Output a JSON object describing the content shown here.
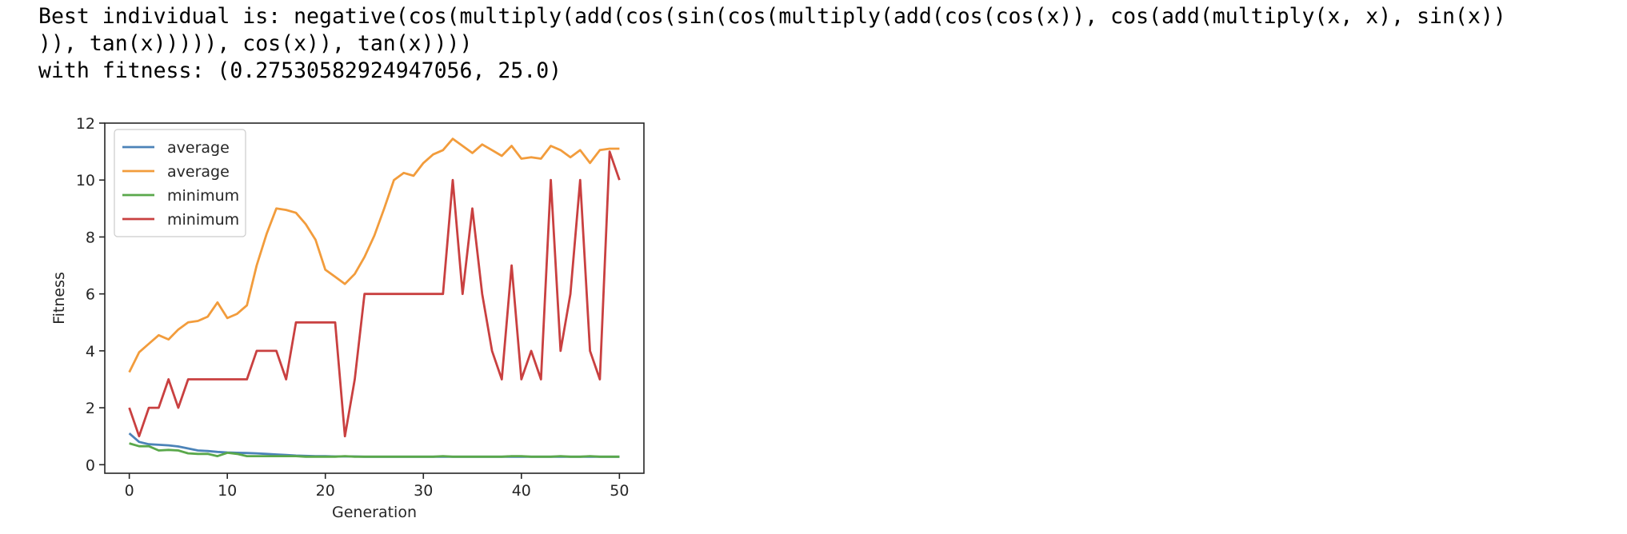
{
  "output": {
    "line1": "Best individual is: negative(cos(multiply(add(cos(sin(cos(multiply(add(cos(cos(x)), cos(add(multiply(x, x), sin(x))",
    "line2": ")), tan(x))))), cos(x)), tan(x))))",
    "line3": "with fitness: (0.27530582924947056, 25.0)"
  },
  "chart_data": {
    "type": "line",
    "title": "",
    "xlabel": "Generation",
    "ylabel": "Fitness",
    "xlim": [
      -2.5,
      52.5
    ],
    "ylim": [
      -0.3,
      12.0
    ],
    "xticks": [
      0,
      10,
      20,
      30,
      40,
      50
    ],
    "yticks": [
      0,
      2,
      4,
      6,
      8,
      10,
      12
    ],
    "grid": false,
    "legend": "upper-left",
    "x": [
      0,
      1,
      2,
      3,
      4,
      5,
      6,
      7,
      8,
      9,
      10,
      11,
      12,
      13,
      14,
      15,
      16,
      17,
      18,
      19,
      20,
      21,
      22,
      23,
      24,
      25,
      26,
      27,
      28,
      29,
      30,
      31,
      32,
      33,
      34,
      35,
      36,
      37,
      38,
      39,
      40,
      41,
      42,
      43,
      44,
      45,
      46,
      47,
      48,
      49,
      50
    ],
    "series": [
      {
        "name": "average",
        "color": "#4c83b8",
        "values": [
          1.1,
          0.8,
          0.72,
          0.7,
          0.68,
          0.64,
          0.57,
          0.5,
          0.48,
          0.45,
          0.43,
          0.42,
          0.41,
          0.4,
          0.38,
          0.36,
          0.34,
          0.32,
          0.31,
          0.3,
          0.3,
          0.29,
          0.29,
          0.29,
          0.28,
          0.28,
          0.28,
          0.28,
          0.28,
          0.28,
          0.28,
          0.28,
          0.28,
          0.28,
          0.28,
          0.28,
          0.28,
          0.28,
          0.28,
          0.28,
          0.28,
          0.28,
          0.28,
          0.28,
          0.28,
          0.28,
          0.28,
          0.28,
          0.28,
          0.28,
          0.28
        ]
      },
      {
        "name": "average",
        "color": "#f29c3c",
        "values": [
          3.25,
          3.95,
          4.25,
          4.55,
          4.4,
          4.75,
          5.0,
          5.05,
          5.2,
          5.7,
          5.15,
          5.3,
          5.6,
          7.0,
          8.1,
          9.0,
          8.95,
          8.85,
          8.45,
          7.9,
          6.85,
          6.6,
          6.35,
          6.7,
          7.3,
          8.05,
          9.0,
          10.0,
          10.25,
          10.15,
          10.6,
          10.9,
          11.05,
          11.45,
          11.2,
          10.95,
          11.25,
          11.05,
          10.85,
          11.2,
          10.75,
          10.8,
          10.75,
          11.2,
          11.05,
          10.8,
          11.05,
          10.6,
          11.05,
          11.1,
          11.1
        ]
      },
      {
        "name": "minimum",
        "color": "#5aa84b",
        "values": [
          0.75,
          0.65,
          0.65,
          0.5,
          0.52,
          0.5,
          0.4,
          0.38,
          0.38,
          0.3,
          0.42,
          0.38,
          0.3,
          0.3,
          0.3,
          0.3,
          0.3,
          0.3,
          0.28,
          0.28,
          0.28,
          0.28,
          0.3,
          0.28,
          0.28,
          0.28,
          0.28,
          0.28,
          0.28,
          0.28,
          0.28,
          0.28,
          0.3,
          0.28,
          0.28,
          0.28,
          0.28,
          0.28,
          0.28,
          0.3,
          0.3,
          0.28,
          0.28,
          0.28,
          0.3,
          0.28,
          0.28,
          0.3,
          0.28,
          0.28,
          0.28
        ]
      },
      {
        "name": "minimum",
        "color": "#c94040",
        "values": [
          2,
          1,
          2,
          2,
          3,
          2,
          3,
          3,
          3,
          3,
          3,
          3,
          3,
          4,
          4,
          4,
          3,
          5,
          5,
          5,
          5,
          5,
          1,
          3,
          6,
          6,
          6,
          6,
          6,
          6,
          6,
          6,
          6,
          10,
          6,
          9,
          6,
          4,
          3,
          7,
          3,
          4,
          3,
          10,
          4,
          6,
          10,
          4,
          3,
          11,
          10
        ]
      }
    ]
  }
}
